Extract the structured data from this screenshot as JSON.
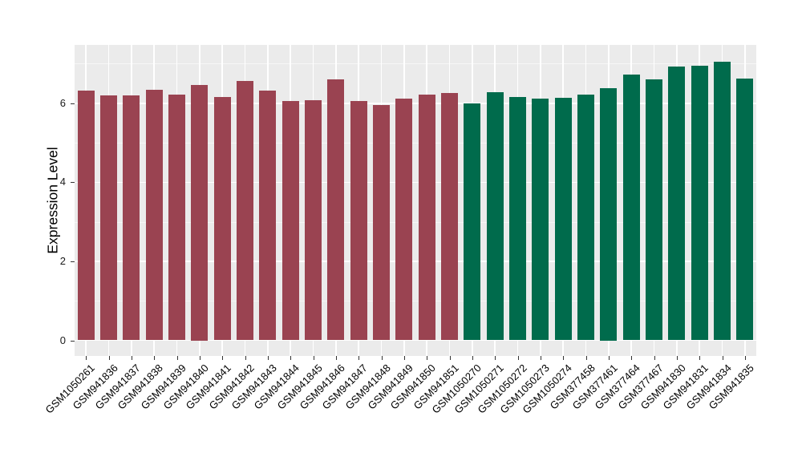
{
  "colors": {
    "panel_background": "#EBEBEB",
    "gridline": "#FFFFFF",
    "tick": "#333333",
    "axis_text": "#1A1A1A",
    "group1_red": "#9A4351",
    "group2_green": "#006B4C"
  },
  "chart_data": {
    "type": "bar",
    "title": "",
    "xlabel": "",
    "ylabel": "Expression Level",
    "ylim": [
      0,
      7.5
    ],
    "yticks": [
      0,
      2,
      4,
      6
    ],
    "yticks_minor": [
      1,
      3,
      5,
      7
    ],
    "grid": true,
    "legend": "none",
    "x_label_angle_degrees": 45,
    "categories": [
      "GSM1050261",
      "GSM941836",
      "GSM941837",
      "GSM941838",
      "GSM941839",
      "GSM941840",
      "GSM941841",
      "GSM941842",
      "GSM941843",
      "GSM941844",
      "GSM941845",
      "GSM941846",
      "GSM941847",
      "GSM941848",
      "GSM941849",
      "GSM941850",
      "GSM941851",
      "GSM1050270",
      "GSM1050271",
      "GSM1050272",
      "GSM1050273",
      "GSM1050274",
      "GSM377458",
      "GSM377461",
      "GSM377464",
      "GSM377467",
      "GSM941830",
      "GSM941831",
      "GSM941834",
      "GSM941835"
    ],
    "values": [
      6.31,
      6.19,
      6.19,
      6.33,
      6.21,
      6.47,
      6.16,
      6.57,
      6.32,
      6.05,
      6.07,
      6.61,
      6.05,
      5.95,
      6.12,
      6.22,
      6.26,
      6.0,
      6.28,
      6.15,
      6.12,
      6.13,
      6.21,
      6.38,
      6.72,
      6.61,
      6.92,
      6.94,
      7.05,
      6.63
    ],
    "bar_groups": [
      {
        "name": "group-1",
        "color": "#9A4351",
        "start": 0,
        "count": 17
      },
      {
        "name": "group-2",
        "color": "#006B4C",
        "start": 17,
        "count": 13
      }
    ]
  }
}
